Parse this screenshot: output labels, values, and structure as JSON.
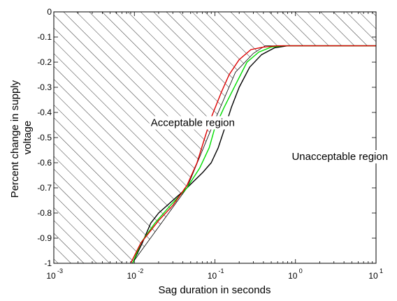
{
  "chart_data": {
    "type": "line",
    "title": "",
    "xlabel": "Sag duration in seconds",
    "ylabel_lines": [
      "Percent change in supply",
      "voltage"
    ],
    "xscale": "log",
    "xlim": [
      0.001,
      10
    ],
    "ylim": [
      -1,
      0
    ],
    "x_ticks": [
      {
        "value": 0.001,
        "base": "10",
        "exp": "-3"
      },
      {
        "value": 0.01,
        "base": "10",
        "exp": "-2"
      },
      {
        "value": 0.1,
        "base": "10",
        "exp": "-1"
      },
      {
        "value": 1,
        "base": "10",
        "exp": "0"
      },
      {
        "value": 10,
        "base": "10",
        "exp": "1"
      }
    ],
    "y_ticks": [
      {
        "value": 0,
        "label": "0"
      },
      {
        "value": -0.1,
        "label": "-0.1"
      },
      {
        "value": -0.2,
        "label": "-0.2"
      },
      {
        "value": -0.3,
        "label": "-0.3"
      },
      {
        "value": -0.4,
        "label": "-0.4"
      },
      {
        "value": -0.5,
        "label": "-0.5"
      },
      {
        "value": -0.6,
        "label": "-0.6"
      },
      {
        "value": -0.7,
        "label": "-0.7"
      },
      {
        "value": -0.8,
        "label": "-0.8"
      },
      {
        "value": -0.9,
        "label": "-0.9"
      },
      {
        "value": -1,
        "label": "-1"
      }
    ],
    "grid": false,
    "annotations": {
      "acceptable": {
        "text": "Acceptable region",
        "x": 0.016,
        "y": -0.44
      },
      "unacceptable": {
        "text": "Unacceptable region",
        "x": 0.9,
        "y": -0.575
      }
    },
    "hatched_region": {
      "boundary": [
        {
          "x": 0.0094,
          "y": -1.0
        },
        {
          "x": 0.045,
          "y": -0.7
        },
        {
          "x": 0.1,
          "y": -0.43
        },
        {
          "x": 0.18,
          "y": -0.24
        },
        {
          "x": 0.3,
          "y": -0.165
        },
        {
          "x": 0.42,
          "y": -0.135
        },
        {
          "x": 10,
          "y": -0.135
        }
      ]
    },
    "series": [
      {
        "color": "#000000",
        "points": [
          {
            "x": 0.0095,
            "y": -1.0
          },
          {
            "x": 0.0125,
            "y": -0.92
          },
          {
            "x": 0.016,
            "y": -0.84
          },
          {
            "x": 0.02,
            "y": -0.8
          },
          {
            "x": 0.03,
            "y": -0.75
          },
          {
            "x": 0.045,
            "y": -0.7
          },
          {
            "x": 0.07,
            "y": -0.64
          },
          {
            "x": 0.09,
            "y": -0.6
          },
          {
            "x": 0.11,
            "y": -0.54
          },
          {
            "x": 0.13,
            "y": -0.47
          },
          {
            "x": 0.16,
            "y": -0.38
          },
          {
            "x": 0.2,
            "y": -0.3
          },
          {
            "x": 0.27,
            "y": -0.22
          },
          {
            "x": 0.38,
            "y": -0.17
          },
          {
            "x": 0.55,
            "y": -0.143
          },
          {
            "x": 0.8,
            "y": -0.135
          },
          {
            "x": 10,
            "y": -0.135
          }
        ]
      },
      {
        "color": "#00dd00",
        "points": [
          {
            "x": 0.0095,
            "y": -1.0
          },
          {
            "x": 0.012,
            "y": -0.92
          },
          {
            "x": 0.018,
            "y": -0.84
          },
          {
            "x": 0.028,
            "y": -0.77
          },
          {
            "x": 0.045,
            "y": -0.7
          },
          {
            "x": 0.065,
            "y": -0.62
          },
          {
            "x": 0.085,
            "y": -0.54
          },
          {
            "x": 0.1,
            "y": -0.46
          },
          {
            "x": 0.13,
            "y": -0.38
          },
          {
            "x": 0.18,
            "y": -0.29
          },
          {
            "x": 0.25,
            "y": -0.2
          },
          {
            "x": 0.35,
            "y": -0.16
          },
          {
            "x": 0.5,
            "y": -0.14
          },
          {
            "x": 0.7,
            "y": -0.135
          },
          {
            "x": 10,
            "y": -0.135
          }
        ]
      },
      {
        "color": "#dd0000",
        "points": [
          {
            "x": 0.009,
            "y": -1.0
          },
          {
            "x": 0.012,
            "y": -0.92
          },
          {
            "x": 0.02,
            "y": -0.83
          },
          {
            "x": 0.03,
            "y": -0.77
          },
          {
            "x": 0.045,
            "y": -0.69
          },
          {
            "x": 0.06,
            "y": -0.6
          },
          {
            "x": 0.075,
            "y": -0.5
          },
          {
            "x": 0.09,
            "y": -0.42
          },
          {
            "x": 0.12,
            "y": -0.32
          },
          {
            "x": 0.15,
            "y": -0.25
          },
          {
            "x": 0.2,
            "y": -0.19
          },
          {
            "x": 0.28,
            "y": -0.15
          },
          {
            "x": 0.4,
            "y": -0.14
          },
          {
            "x": 0.6,
            "y": -0.135
          },
          {
            "x": 10,
            "y": -0.135
          }
        ]
      }
    ]
  }
}
